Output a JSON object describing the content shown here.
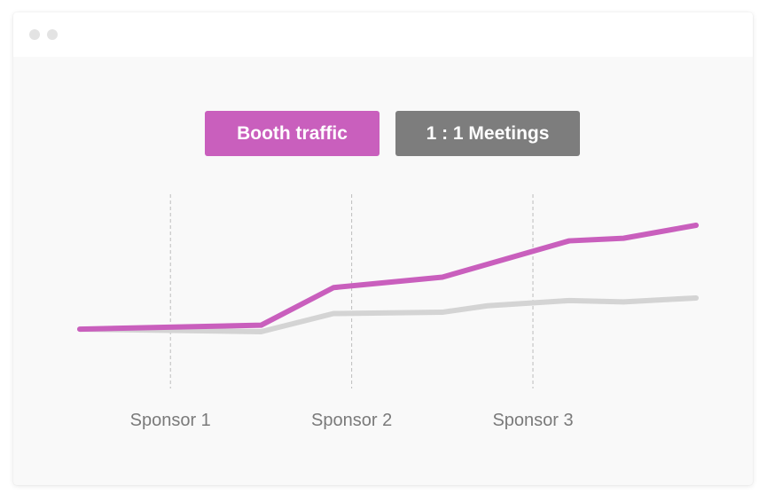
{
  "colors": {
    "window_bg": "#f9f9f9",
    "titlebar_bg": "#ffffff",
    "dot": "#e3e3e3",
    "gridline": "#bdbdbd",
    "tick_label": "#7a7a7a"
  },
  "chart_data": {
    "type": "line",
    "x": [
      0,
      1,
      1.4,
      2,
      2.25,
      2.7,
      3,
      3.4
    ],
    "tick_positions": [
      0.5,
      1.5,
      2.5
    ],
    "categories": [
      "Sponsor 1",
      "Sponsor 2",
      "Sponsor 3"
    ],
    "series": [
      {
        "name": "Booth traffic",
        "color": "#c95fbd",
        "values": [
          20,
          23,
          52,
          60,
          70,
          88,
          90,
          100
        ]
      },
      {
        "name": "1 : 1 Meetings",
        "color": "#d4d4d4",
        "legend_color": "#7d7d7d",
        "values": [
          20,
          18,
          32,
          33,
          38,
          42,
          41,
          44
        ]
      }
    ],
    "grid": {
      "x_lines_at_ticks": true,
      "style": "dashed"
    },
    "axes_visible": false,
    "legend_placement": "top-center"
  }
}
